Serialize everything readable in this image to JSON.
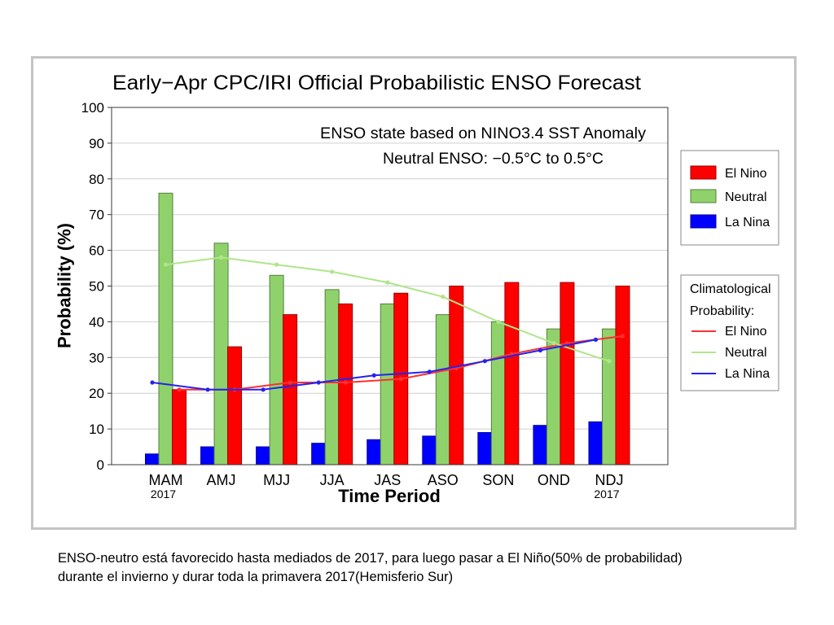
{
  "slide": {
    "caption_lines": [
      "ENSO-neutro está favorecido hasta mediados de 2017, para luego pasar a El Niño(50% de probabilidad)",
      "durante el invierno y durar toda la primavera 2017(Hemisferio Sur)"
    ]
  },
  "chart_data": {
    "type": "bar",
    "title": "Early−Apr CPC/IRI Official Probabilistic ENSO Forecast",
    "xlabel": "Time Period",
    "ylabel": "Probability (%)",
    "ylim": [
      0,
      100
    ],
    "yticks": [
      0,
      10,
      20,
      30,
      40,
      50,
      60,
      70,
      80,
      90,
      100
    ],
    "grid": true,
    "legend_placement": "right",
    "categories": [
      "MAM",
      "AMJ",
      "MJJ",
      "JJA",
      "JAS",
      "ASO",
      "SON",
      "OND",
      "NDJ"
    ],
    "category_years": [
      "2017",
      null,
      null,
      null,
      null,
      null,
      null,
      null,
      "2017"
    ],
    "annotations": [
      "ENSO state based on NINO3.4 SST Anomaly",
      "Neutral ENSO: −0.5°C to 0.5°C"
    ],
    "series": [
      {
        "name": "El Nino",
        "color": "#ff0000",
        "values": [
          21,
          33,
          42,
          45,
          48,
          50,
          51,
          51,
          50
        ]
      },
      {
        "name": "Neutral",
        "color": "#8fd26b",
        "values": [
          76,
          62,
          53,
          49,
          45,
          42,
          40,
          38,
          38
        ]
      },
      {
        "name": "La Nina",
        "color": "#0000ff",
        "values": [
          3,
          5,
          5,
          6,
          7,
          8,
          9,
          11,
          12
        ]
      }
    ],
    "climatology": {
      "type": "line",
      "label": "Climatological Probability:",
      "series": [
        {
          "name": "El Nino",
          "color": "#ff3030",
          "values": [
            21,
            21,
            23,
            23,
            24,
            27,
            31,
            34,
            36
          ]
        },
        {
          "name": "Neutral",
          "color": "#b0e58a",
          "values": [
            56,
            58,
            56,
            54,
            51,
            47,
            40,
            34,
            29
          ]
        },
        {
          "name": "La Nina",
          "color": "#2323f0",
          "values": [
            23,
            21,
            21,
            23,
            25,
            26,
            29,
            32,
            35
          ]
        }
      ]
    }
  }
}
